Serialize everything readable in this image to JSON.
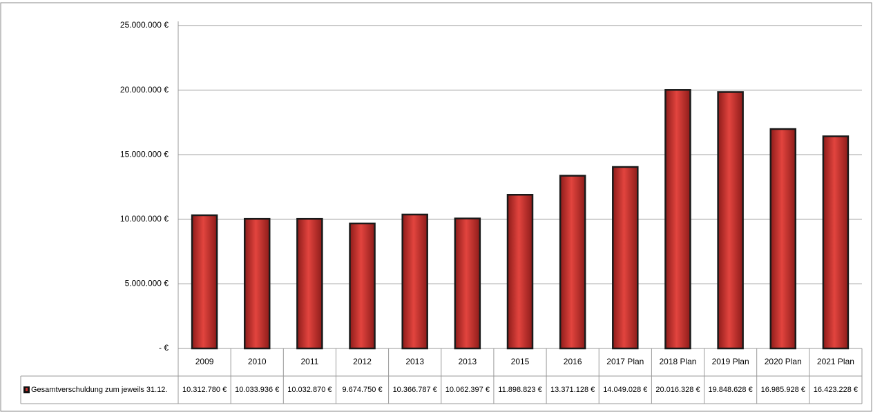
{
  "chart_data": {
    "type": "bar",
    "categories": [
      "2009",
      "2010",
      "2011",
      "2012",
      "2013",
      "2013",
      "2015",
      "2016",
      "2017 Plan",
      "2018 Plan",
      "2019 Plan",
      "2020 Plan",
      "2021 Plan"
    ],
    "series": [
      {
        "name": "Gesamtverschuldung zum jeweils 31.12.",
        "color": "#c8302c",
        "values": [
          10312780,
          10033936,
          10032870,
          9674750,
          10366787,
          10062397,
          11898823,
          13371128,
          14049028,
          20016328,
          19848628,
          16985928,
          16423228
        ],
        "value_labels": [
          "10.312.780 €",
          "10.033.936 €",
          "10.032.870 €",
          "9.674.750 €",
          "10.366.787 €",
          "10.062.397 €",
          "11.898.823 €",
          "13.371.128 €",
          "14.049.028 €",
          "20.016.328 €",
          "19.848.628 €",
          "16.985.928 €",
          "16.423.228 €"
        ]
      }
    ],
    "ylim": [
      0,
      25000000
    ],
    "yticks": [
      {
        "value": 0,
        "label": "- €"
      },
      {
        "value": 5000000,
        "label": "5.000.000 €"
      },
      {
        "value": 10000000,
        "label": "10.000.000 €"
      },
      {
        "value": 15000000,
        "label": "15.000.000 €"
      },
      {
        "value": 20000000,
        "label": "20.000.000 €"
      },
      {
        "value": 25000000,
        "label": "25.000.000 €"
      }
    ],
    "grid": true
  }
}
